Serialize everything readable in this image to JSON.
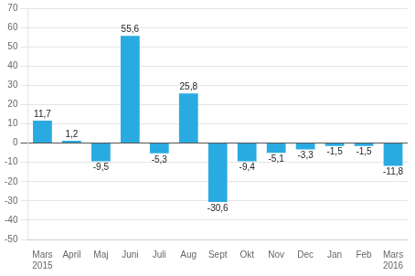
{
  "chart_data": {
    "type": "bar",
    "categories": [
      "Mars",
      "April",
      "Maj",
      "Juni",
      "Juli",
      "Aug",
      "Sept",
      "Okt",
      "Nov",
      "Dec",
      "Jan",
      "Feb",
      "Mars"
    ],
    "values": [
      11.7,
      1.2,
      -9.5,
      55.6,
      -5.3,
      25.8,
      -30.6,
      -9.4,
      -5.1,
      -3.3,
      -1.5,
      -1.5,
      -11.8
    ],
    "value_labels": [
      "11,7",
      "1,2",
      "-9,5",
      "55,6",
      "-5,3",
      "25,8",
      "-30,6",
      "-9,4",
      "-5,1",
      "-3,3",
      "-1,5",
      "-1,5",
      "-11,8"
    ],
    "color": "#29abe2",
    "ylim": [
      -50,
      70
    ],
    "yticks": [
      -50,
      -40,
      -30,
      -20,
      -10,
      0,
      10,
      20,
      30,
      40,
      50,
      60,
      70
    ],
    "grid": true,
    "data_labels": true,
    "annotations": [
      {
        "text": "2015",
        "x": 0
      },
      {
        "text": "2016",
        "x": 12
      }
    ]
  }
}
